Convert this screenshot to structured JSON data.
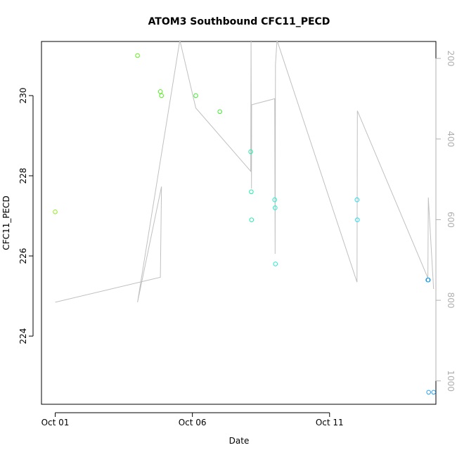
{
  "chart_data": {
    "type": "scatter",
    "title": "ATOM3 Southbound CFC11_PECD",
    "xlabel": "Date",
    "ylabel": "CFC11_PECD",
    "x_axis": {
      "type": "date",
      "range": [
        "2016-09-30T12:00",
        "2016-10-14T21:00"
      ],
      "ticks": [
        {
          "value": "2016-10-01T00:00",
          "label": "Oct 01"
        },
        {
          "value": "2016-10-06T00:00",
          "label": "Oct 06"
        },
        {
          "value": "2016-10-11T00:00",
          "label": "Oct 11"
        }
      ]
    },
    "y_axis": {
      "range": [
        222.3,
        231.35
      ],
      "ticks": [
        224,
        226,
        228,
        230
      ]
    },
    "y2_axis": {
      "range": [
        1058,
        158
      ],
      "reversed": true,
      "ticks": [
        200,
        400,
        600,
        800,
        1000
      ],
      "color": "#b0b0b0"
    },
    "series": [
      {
        "kind": "points",
        "points": [
          {
            "x": "2016-10-01T00:00",
            "y": 227.1,
            "color": "#90ee20"
          },
          {
            "x": "2016-10-04T00:00",
            "y": 231.0,
            "color": "#66ee22"
          },
          {
            "x": "2016-10-04T20:00",
            "y": 230.1,
            "color": "#55ee22"
          },
          {
            "x": "2016-10-04T21:00",
            "y": 230.0,
            "color": "#55ee22"
          },
          {
            "x": "2016-10-06T03:00",
            "y": 230.0,
            "color": "#44ee33"
          },
          {
            "x": "2016-10-07T00:00",
            "y": 229.6,
            "color": "#44ee33"
          },
          {
            "x": "2016-10-08T03:00",
            "y": 228.6,
            "color": "#22eeaa"
          },
          {
            "x": "2016-10-08T03:30",
            "y": 227.6,
            "color": "#22eeaa"
          },
          {
            "x": "2016-10-08T03:45",
            "y": 226.9,
            "color": "#22eeaa"
          },
          {
            "x": "2016-10-09T00:00",
            "y": 227.4,
            "color": "#22eecc"
          },
          {
            "x": "2016-10-09T00:20",
            "y": 227.2,
            "color": "#22eecc"
          },
          {
            "x": "2016-10-09T00:40",
            "y": 225.8,
            "color": "#22eecc"
          },
          {
            "x": "2016-10-12T00:00",
            "y": 227.4,
            "color": "#22ddee"
          },
          {
            "x": "2016-10-12T00:20",
            "y": 226.9,
            "color": "#22ddee"
          },
          {
            "x": "2016-10-14T14:00",
            "y": 225.4,
            "color": "#1a9ae6"
          },
          {
            "x": "2016-10-14T14:20",
            "y": 225.4,
            "color": "#1a9ae6"
          },
          {
            "x": "2016-10-14T14:40",
            "y": 222.6,
            "color": "#2aa0f0"
          },
          {
            "x": "2016-10-14T19:00",
            "y": 222.6,
            "color": "#2aa0f0"
          }
        ]
      },
      {
        "kind": "line",
        "axis": "y2",
        "color": "#c0c0c0",
        "points": [
          {
            "x": "2016-10-01T00:00",
            "y": 805
          },
          {
            "x": "2016-10-04T20:00",
            "y": 743
          },
          {
            "x": "2016-10-04T21:00",
            "y": 518
          },
          {
            "x": "2016-10-04T00:00",
            "y": 805
          },
          {
            "x": "2016-10-05T13:00",
            "y": 155
          },
          {
            "x": "2016-10-06T03:00",
            "y": 323
          },
          {
            "x": "2016-10-08T03:00",
            "y": 480
          },
          {
            "x": "2016-10-08T03:20",
            "y": 155
          },
          {
            "x": "2016-10-08T03:40",
            "y": 523
          },
          {
            "x": "2016-10-08T03:50",
            "y": 315
          },
          {
            "x": "2016-10-09T00:00",
            "y": 300
          },
          {
            "x": "2016-10-09T00:20",
            "y": 685
          },
          {
            "x": "2016-10-09T00:40",
            "y": 215
          },
          {
            "x": "2016-10-09T02:00",
            "y": 155
          },
          {
            "x": "2016-10-12T00:00",
            "y": 755
          },
          {
            "x": "2016-10-12T00:20",
            "y": 330
          },
          {
            "x": "2016-10-14T14:00",
            "y": 745
          },
          {
            "x": "2016-10-14T14:20",
            "y": 545
          },
          {
            "x": "2016-10-14T19:00",
            "y": 772
          }
        ]
      }
    ],
    "grid": false,
    "legend": "none"
  }
}
